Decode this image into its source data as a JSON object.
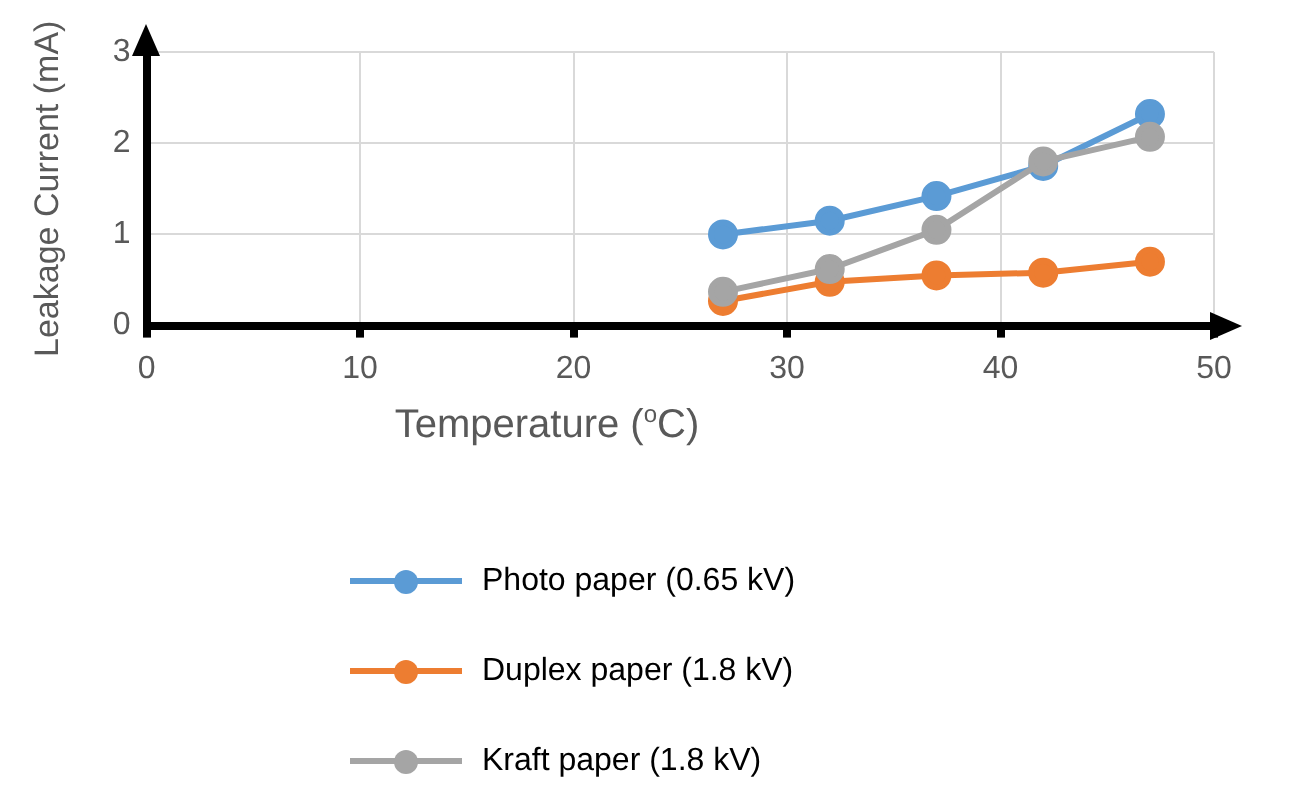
{
  "chart_data": {
    "type": "line",
    "xlabel": "Temperature ($^{o}$C)",
    "ylabel": "Leakage Current (mA)",
    "xlim": [
      0,
      50
    ],
    "xticks": [
      0,
      10,
      20,
      30,
      40,
      50
    ],
    "ylim": [
      0,
      3
    ],
    "yticks": [
      0,
      1,
      2,
      3
    ],
    "x": [
      27,
      32,
      37,
      42,
      47
    ],
    "series": [
      {
        "name": "Photo paper (0.65 kV)",
        "color": "#5b9bd5",
        "values": [
          1.0,
          1.15,
          1.42,
          1.75,
          2.32
        ]
      },
      {
        "name": "Duplex paper (1.8 kV)",
        "color": "#ed7d31",
        "values": [
          0.27,
          0.48,
          0.55,
          0.58,
          0.7
        ]
      },
      {
        "name": "Kraft paper (1.8 kV)",
        "color": "#a5a5a5",
        "values": [
          0.37,
          0.62,
          1.05,
          1.8,
          2.07
        ]
      }
    ],
    "grid": true,
    "legend": "bottom",
    "marker": "circle",
    "line_style": "solid"
  }
}
